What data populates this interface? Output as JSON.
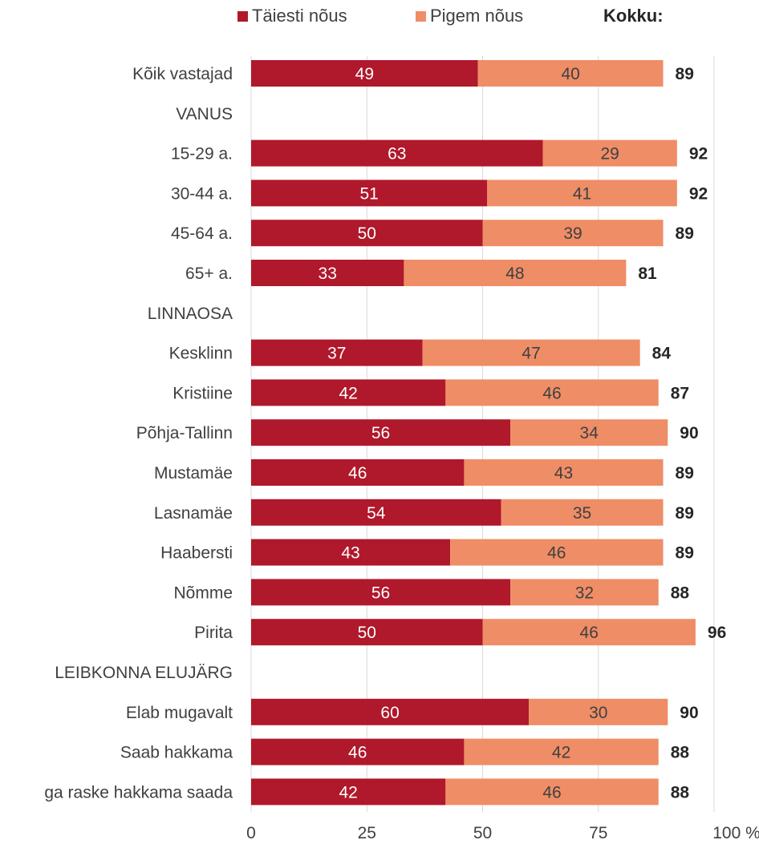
{
  "chart_data": {
    "type": "bar",
    "orientation": "horizontal",
    "stacked": true,
    "legend_position": "top",
    "grid": true,
    "xlim": [
      0,
      100
    ],
    "x_ticks": [
      "0",
      "25",
      "50",
      "75",
      "100 %"
    ],
    "total_label": "Kokku:",
    "colors": {
      "taiesti": "#B0182B",
      "pigem": "#EF8D66",
      "grid": "#D9D9D9",
      "text": "#404040",
      "total": "#262626"
    },
    "rows": [
      {
        "label": "Kõik vastajad",
        "taiesti": 49,
        "pigem": 40,
        "total": 89
      },
      {
        "label": "VANUS",
        "header": true
      },
      {
        "label": "15-29 a.",
        "taiesti": 63,
        "pigem": 29,
        "total": 92
      },
      {
        "label": "30-44 a.",
        "taiesti": 51,
        "pigem": 41,
        "total": 92
      },
      {
        "label": "45-64 a.",
        "taiesti": 50,
        "pigem": 39,
        "total": 89
      },
      {
        "label": "65+ a.",
        "taiesti": 33,
        "pigem": 48,
        "total": 81
      },
      {
        "label": "LINNAOSA",
        "header": true
      },
      {
        "label": "Kesklinn",
        "taiesti": 37,
        "pigem": 47,
        "total": 84
      },
      {
        "label": "Kristiine",
        "taiesti": 42,
        "pigem": 46,
        "total": 87
      },
      {
        "label": "Põhja-Tallinn",
        "taiesti": 56,
        "pigem": 34,
        "total": 90
      },
      {
        "label": "Mustamäe",
        "taiesti": 46,
        "pigem": 43,
        "total": 89
      },
      {
        "label": "Lasnamäe",
        "taiesti": 54,
        "pigem": 35,
        "total": 89
      },
      {
        "label": "Haabersti",
        "taiesti": 43,
        "pigem": 46,
        "total": 89
      },
      {
        "label": "Nõmme",
        "taiesti": 56,
        "pigem": 32,
        "total": 88
      },
      {
        "label": "Pirita",
        "taiesti": 50,
        "pigem": 46,
        "total": 96
      },
      {
        "label": "LEIBKONNA ELUJÄRG",
        "header": true
      },
      {
        "label": "Elab mugavalt",
        "taiesti": 60,
        "pigem": 30,
        "total": 90
      },
      {
        "label": "Saab hakkama",
        "taiesti": 46,
        "pigem": 42,
        "total": 88
      },
      {
        "label": "ga raske hakkama saada",
        "taiesti": 42,
        "pigem": 46,
        "total": 88
      }
    ],
    "series": [
      {
        "key": "taiesti",
        "name": "Täiesti nõus"
      },
      {
        "key": "pigem",
        "name": "Pigem nõus"
      }
    ]
  }
}
